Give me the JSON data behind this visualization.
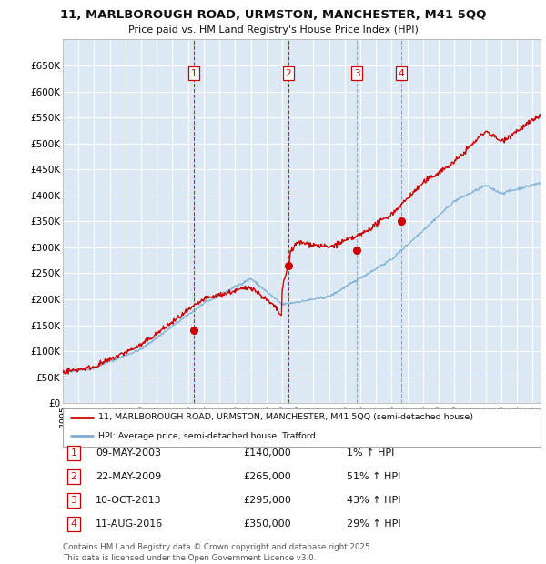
{
  "title_line1": "11, MARLBOROUGH ROAD, URMSTON, MANCHESTER, M41 5QQ",
  "title_line2": "Price paid vs. HM Land Registry's House Price Index (HPI)",
  "legend_label1": "11, MARLBOROUGH ROAD, URMSTON, MANCHESTER, M41 5QQ (semi-detached house)",
  "legend_label2": "HPI: Average price, semi-detached house, Trafford",
  "transactions": [
    {
      "num": 1,
      "date": "09-MAY-2003",
      "price": 140000,
      "hpi_pct": "1% ↑ HPI",
      "date_val": 2003.36
    },
    {
      "num": 2,
      "date": "22-MAY-2009",
      "price": 265000,
      "hpi_pct": "51% ↑ HPI",
      "date_val": 2009.39
    },
    {
      "num": 3,
      "date": "10-OCT-2013",
      "price": 295000,
      "hpi_pct": "43% ↑ HPI",
      "date_val": 2013.78
    },
    {
      "num": 4,
      "date": "11-AUG-2016",
      "price": 350000,
      "hpi_pct": "29% ↑ HPI",
      "date_val": 2016.61
    }
  ],
  "footer": "Contains HM Land Registry data © Crown copyright and database right 2025.\nThis data is licensed under the Open Government Licence v3.0.",
  "background_color": "#ffffff",
  "plot_bg_color": "#dce9f5",
  "grid_color": "#ffffff",
  "red_color": "#cc0000",
  "blue_color": "#7aadd4",
  "vline_colors": [
    "#cc0000",
    "#cc0000",
    "#8899bb",
    "#8899bb"
  ],
  "ylim": [
    0,
    700000
  ],
  "yticks": [
    0,
    50000,
    100000,
    150000,
    200000,
    250000,
    300000,
    350000,
    400000,
    450000,
    500000,
    550000,
    600000,
    650000
  ],
  "xtick_years": [
    1995,
    1996,
    1997,
    1998,
    1999,
    2000,
    2001,
    2002,
    2003,
    2004,
    2005,
    2006,
    2007,
    2008,
    2009,
    2010,
    2011,
    2012,
    2013,
    2014,
    2015,
    2016,
    2017,
    2018,
    2019,
    2020,
    2021,
    2022,
    2023,
    2024,
    2025
  ],
  "xlim": [
    1995.0,
    2025.5
  ]
}
